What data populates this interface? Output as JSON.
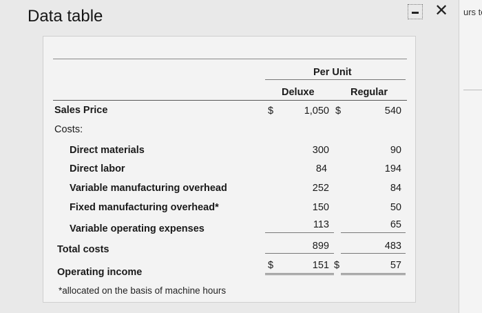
{
  "window": {
    "title": "Data table",
    "side_text": "urs to"
  },
  "table": {
    "group_header": "Per Unit",
    "col_deluxe": "Deluxe",
    "col_regular": "Regular",
    "sales_price": {
      "label": "Sales Price",
      "dollar1": "$",
      "deluxe": "1,050",
      "dollar2": "$",
      "regular": "540"
    },
    "costs_label": "Costs:",
    "rows": [
      {
        "label": "Direct materials",
        "deluxe": "300",
        "regular": "90"
      },
      {
        "label": "Direct labor",
        "deluxe": "84",
        "regular": "194"
      },
      {
        "label": "Variable manufacturing overhead",
        "deluxe": "252",
        "regular": "84"
      },
      {
        "label": "Fixed manufacturing overhead*",
        "deluxe": "150",
        "regular": "50"
      },
      {
        "label": "Variable operating expenses",
        "deluxe": "113",
        "regular": "65"
      }
    ],
    "total_costs": {
      "label": "Total costs",
      "deluxe": "899",
      "regular": "483"
    },
    "operating_income": {
      "label": "Operating income",
      "dollar1": "$",
      "deluxe": "151",
      "dollar2": "$",
      "regular": "57"
    },
    "footnote": "*allocated on the basis of machine hours"
  }
}
